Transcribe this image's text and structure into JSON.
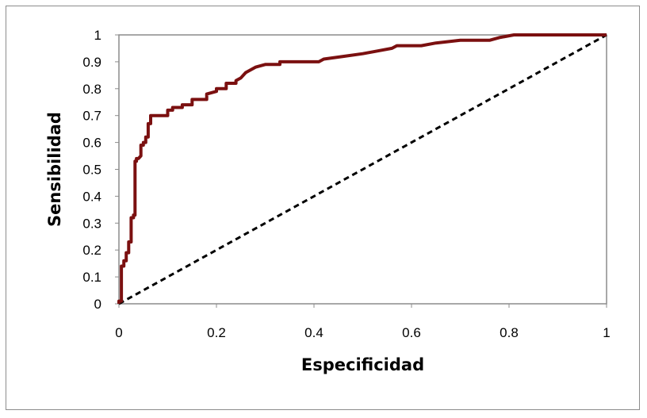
{
  "chart_data": {
    "type": "line",
    "title": "",
    "xlabel": "Especificidad",
    "ylabel": "Sensibilidad",
    "xlim": [
      0,
      1
    ],
    "ylim": [
      0,
      1
    ],
    "x_ticks": [
      "0",
      "0.2",
      "0.4",
      "0.6",
      "0.8",
      "1"
    ],
    "y_ticks": [
      "0",
      "0.1",
      "0.2",
      "0.3",
      "0.4",
      "0.5",
      "0.6",
      "0.7",
      "0.8",
      "0.9",
      "1"
    ],
    "x_tick_values": [
      0,
      0.2,
      0.4,
      0.6,
      0.8,
      1
    ],
    "y_tick_values": [
      0,
      0.1,
      0.2,
      0.3,
      0.4,
      0.5,
      0.6,
      0.7,
      0.8,
      0.9,
      1
    ],
    "grid": false,
    "legend": "none",
    "series": [
      {
        "color": "#7b1010",
        "style": "solid",
        "points": [
          [
            0,
            0
          ],
          [
            0,
            0.01
          ],
          [
            0.005,
            0.01
          ],
          [
            0.005,
            0.14
          ],
          [
            0.01,
            0.14
          ],
          [
            0.01,
            0.16
          ],
          [
            0.015,
            0.16
          ],
          [
            0.015,
            0.19
          ],
          [
            0.02,
            0.19
          ],
          [
            0.02,
            0.23
          ],
          [
            0.025,
            0.23
          ],
          [
            0.025,
            0.32
          ],
          [
            0.03,
            0.32
          ],
          [
            0.03,
            0.33
          ],
          [
            0.033,
            0.33
          ],
          [
            0.033,
            0.53
          ],
          [
            0.036,
            0.53
          ],
          [
            0.036,
            0.54
          ],
          [
            0.04,
            0.54
          ],
          [
            0.045,
            0.55
          ],
          [
            0.045,
            0.59
          ],
          [
            0.05,
            0.59
          ],
          [
            0.05,
            0.6
          ],
          [
            0.055,
            0.6
          ],
          [
            0.055,
            0.62
          ],
          [
            0.06,
            0.62
          ],
          [
            0.06,
            0.67
          ],
          [
            0.065,
            0.67
          ],
          [
            0.065,
            0.7
          ],
          [
            0.1,
            0.7
          ],
          [
            0.1,
            0.72
          ],
          [
            0.11,
            0.72
          ],
          [
            0.11,
            0.73
          ],
          [
            0.13,
            0.73
          ],
          [
            0.13,
            0.74
          ],
          [
            0.15,
            0.74
          ],
          [
            0.15,
            0.76
          ],
          [
            0.18,
            0.76
          ],
          [
            0.18,
            0.78
          ],
          [
            0.2,
            0.79
          ],
          [
            0.2,
            0.8
          ],
          [
            0.22,
            0.8
          ],
          [
            0.22,
            0.82
          ],
          [
            0.24,
            0.82
          ],
          [
            0.24,
            0.83
          ],
          [
            0.25,
            0.84
          ],
          [
            0.26,
            0.86
          ],
          [
            0.28,
            0.88
          ],
          [
            0.3,
            0.89
          ],
          [
            0.33,
            0.89
          ],
          [
            0.33,
            0.9
          ],
          [
            0.41,
            0.9
          ],
          [
            0.42,
            0.91
          ],
          [
            0.46,
            0.92
          ],
          [
            0.5,
            0.93
          ],
          [
            0.53,
            0.94
          ],
          [
            0.56,
            0.95
          ],
          [
            0.57,
            0.96
          ],
          [
            0.62,
            0.96
          ],
          [
            0.65,
            0.97
          ],
          [
            0.7,
            0.98
          ],
          [
            0.76,
            0.98
          ],
          [
            0.78,
            0.99
          ],
          [
            0.81,
            1.0
          ],
          [
            1.0,
            1.0
          ]
        ]
      },
      {
        "color": "#000000",
        "style": "dashed",
        "points": [
          [
            0,
            0
          ],
          [
            1,
            1
          ]
        ]
      }
    ]
  }
}
